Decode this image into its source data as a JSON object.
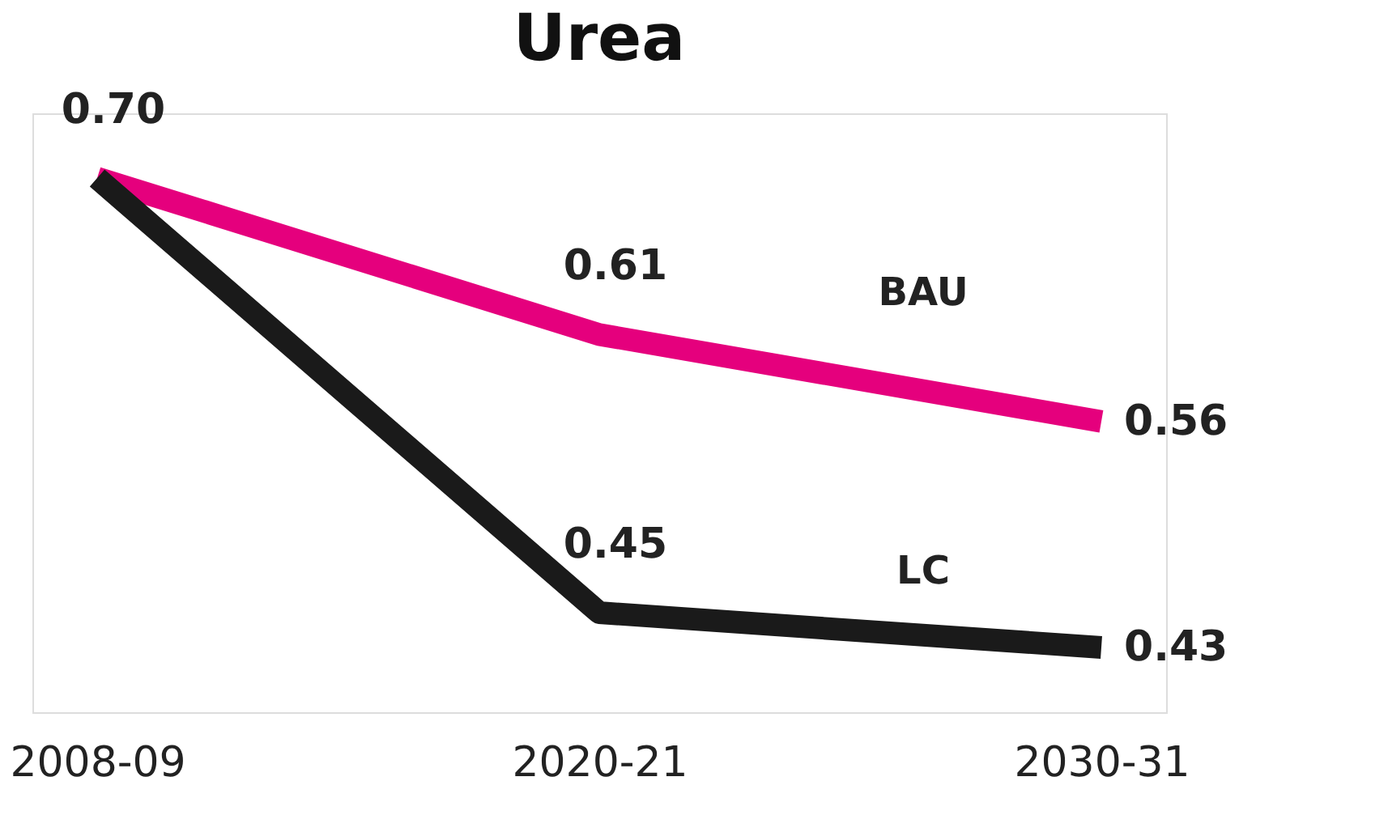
{
  "chart_data": {
    "type": "line",
    "title": "Urea",
    "categories": [
      "2008-09",
      "2020-21",
      "2030-31"
    ],
    "series": [
      {
        "name": "BAU",
        "color": "#e5007d",
        "values": [
          0.7,
          0.61,
          0.56
        ],
        "value_labels": [
          "0.70",
          "0.61",
          "0.56"
        ]
      },
      {
        "name": "LC",
        "color": "#1a1a1a",
        "values": [
          0.7,
          0.45,
          0.43
        ],
        "value_labels": [
          null,
          "0.45",
          "0.43"
        ]
      }
    ],
    "grid": false,
    "marker": "none",
    "line_style": "solid",
    "tick_labels": "x"
  }
}
